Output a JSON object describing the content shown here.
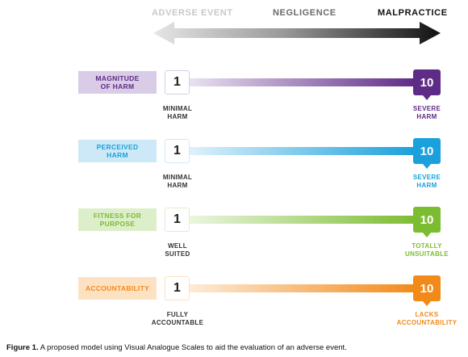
{
  "header": {
    "left": "ADVERSE EVENT",
    "middle": "NEGLIGENCE",
    "right": "MALPRACTICE"
  },
  "rows": [
    {
      "category": "MAGNITUDE OF HARM",
      "category_lines": [
        "MAGNITUDE",
        "OF HARM"
      ],
      "low_value": "1",
      "high_value": "10",
      "low_label": [
        "MINIMAL",
        "HARM"
      ],
      "high_label": [
        "SEVERE",
        "HARM"
      ],
      "colors": {
        "dark": "#5e2b86",
        "light": "#d9cce6",
        "text": "#5e2b86",
        "grad_start": "#ede6f3"
      }
    },
    {
      "category": "PERCEIVED HARM",
      "category_lines": [
        "PERCEIVED",
        "HARM"
      ],
      "low_value": "1",
      "high_value": "10",
      "low_label": [
        "MINIMAL",
        "HARM"
      ],
      "high_label": [
        "SEVERE",
        "HARM"
      ],
      "colors": {
        "dark": "#1aa0db",
        "light": "#cde9f7",
        "text": "#1aa0db",
        "grad_start": "#e3f3fb"
      }
    },
    {
      "category": "FITNESS FOR PURPOSE",
      "category_lines": [
        "FITNESS FOR",
        "PURPOSE"
      ],
      "low_value": "1",
      "high_value": "10",
      "low_label": [
        "WELL",
        "SUITED"
      ],
      "high_label": [
        "TOTALLY",
        "UNSUITABLE"
      ],
      "colors": {
        "dark": "#7cbc31",
        "light": "#ddefca",
        "text": "#7cbc31",
        "grad_start": "#eef7e4"
      }
    },
    {
      "category": "ACCOUNTABILITY",
      "category_lines": [
        "ACCOUNTABILITY"
      ],
      "low_value": "1",
      "high_value": "10",
      "low_label": [
        "FULLY",
        "ACCOUNTABLE"
      ],
      "high_label": [
        "LACKS",
        "ACCOUNTABILITY"
      ],
      "colors": {
        "dark": "#f28a1a",
        "light": "#fde1c3",
        "text": "#f28a1a",
        "grad_start": "#fdeedd"
      }
    }
  ],
  "caption": {
    "label": "Figure 1.",
    "text": "A proposed model using Visual Analogue Scales to aid the evaluation of an adverse event."
  }
}
